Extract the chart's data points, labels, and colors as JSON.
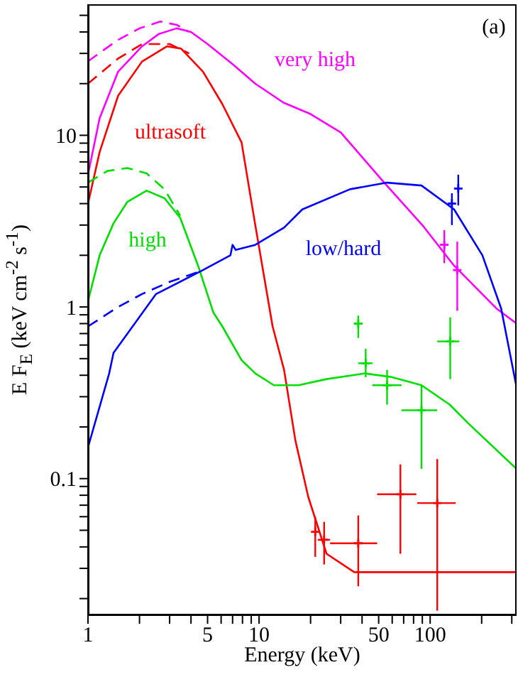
{
  "chart_data": {
    "type": "line",
    "xlabel": "Energy (keV)",
    "ylabel": "E F$_{E}$ (keV cm$^{-2}$ s$^{-1}$)",
    "annotations": [
      "(a)"
    ],
    "log": "xy",
    "grid": false,
    "legend": false,
    "marker": "none",
    "line_style": "solid",
    "xlim": [
      1,
      320
    ],
    "ylim": [
      0.016,
      58
    ],
    "xticks": [
      1,
      {
        "value": 2,
        "label": null
      },
      {
        "value": 3,
        "label": null
      },
      {
        "value": 4,
        "label": null
      },
      5,
      {
        "value": 6,
        "label": null
      },
      {
        "value": 7,
        "label": null
      },
      {
        "value": 8,
        "label": null
      },
      {
        "value": 9,
        "label": null
      },
      10,
      {
        "value": 20,
        "label": null
      },
      {
        "value": 30,
        "label": null
      },
      {
        "value": 40,
        "label": null
      },
      50,
      {
        "value": 60,
        "label": null
      },
      {
        "value": 70,
        "label": null
      },
      {
        "value": 80,
        "label": null
      },
      {
        "value": 90,
        "label": null
      },
      100,
      {
        "value": 200,
        "label": null
      },
      {
        "value": 300,
        "label": null
      }
    ],
    "yticks": [
      {
        "value": 0.02,
        "label": null
      },
      {
        "value": 0.03,
        "label": null
      },
      {
        "value": 0.04,
        "label": null
      },
      {
        "value": 0.05,
        "label": null
      },
      {
        "value": 0.06,
        "label": null
      },
      {
        "value": 0.07,
        "label": null
      },
      {
        "value": 0.08,
        "label": null
      },
      {
        "value": 0.09,
        "label": null
      },
      0.1,
      {
        "value": 0.2,
        "label": null
      },
      {
        "value": 0.3,
        "label": null
      },
      {
        "value": 0.4,
        "label": null
      },
      {
        "value": 0.5,
        "label": null
      },
      {
        "value": 0.6,
        "label": null
      },
      {
        "value": 0.7,
        "label": null
      },
      {
        "value": 0.8,
        "label": null
      },
      {
        "value": 0.9,
        "label": null
      },
      1,
      {
        "value": 2,
        "label": null
      },
      {
        "value": 3,
        "label": null
      },
      {
        "value": 4,
        "label": null
      },
      {
        "value": 5,
        "label": null
      },
      {
        "value": 6,
        "label": null
      },
      {
        "value": 7,
        "label": null
      },
      {
        "value": 8,
        "label": null
      },
      {
        "value": 9,
        "label": null
      },
      10,
      {
        "value": 20,
        "label": null
      },
      {
        "value": 30,
        "label": null
      },
      {
        "value": 40,
        "label": null
      },
      {
        "value": 50,
        "label": null
      }
    ],
    "series": [
      {
        "name": "very high",
        "color": "#ff00ff",
        "x": [
          1,
          1.17,
          1.5,
          2.07,
          2.6,
          3.3,
          4,
          5,
          7,
          9.5,
          13.9,
          20,
          30,
          53,
          90,
          138,
          244,
          320
        ],
        "values": [
          5.9,
          12.6,
          23.5,
          33,
          39,
          42,
          40,
          34,
          26,
          20,
          15.5,
          13.3,
          10.4,
          5.4,
          3.0,
          1.74,
          0.98,
          0.8
        ]
      },
      {
        "color": "#ff00ff",
        "line_style": "dashed",
        "x": [
          1,
          1.5,
          2,
          2.65,
          3.3,
          3.9
        ],
        "values": [
          27,
          36,
          42,
          46,
          44,
          40
        ]
      },
      {
        "name": "ultrasoft",
        "color": "#ff0000",
        "x": [
          1,
          1.17,
          1.5,
          2.07,
          2.9,
          3.5,
          4.7,
          6.1,
          7.9,
          9.5,
          12,
          14,
          16.3,
          19.4,
          24.8,
          36,
          320
        ],
        "values": [
          4.0,
          8,
          17,
          26.9,
          33,
          32,
          23.5,
          15.2,
          9.1,
          3.0,
          0.77,
          0.43,
          0.167,
          0.078,
          0.0365,
          0.0285,
          0.0285
        ]
      },
      {
        "color": "#ff0000",
        "line_style": "dashed",
        "x": [
          1,
          1.5,
          2.07,
          3,
          3.9
        ],
        "values": [
          20,
          28,
          34,
          34,
          30
        ]
      },
      {
        "name": "high",
        "color": "#00e000",
        "x": [
          1,
          1.17,
          1.41,
          1.7,
          2.2,
          2.8,
          3.46,
          4.4,
          5.4,
          6.1,
          7.9,
          9.5,
          12.2,
          17,
          24.8,
          41.5,
          60,
          89,
          130,
          167,
          320
        ],
        "values": [
          1.08,
          2.0,
          3.07,
          4.1,
          4.76,
          4.3,
          3.3,
          1.74,
          0.93,
          0.77,
          0.49,
          0.41,
          0.35,
          0.35,
          0.38,
          0.41,
          0.39,
          0.35,
          0.27,
          0.21,
          0.114
        ]
      },
      {
        "color": "#00e000",
        "line_style": "dashed",
        "x": [
          1,
          1.3,
          1.7,
          2.2,
          2.8,
          3.46
        ],
        "values": [
          5.3,
          6.2,
          6.45,
          6.0,
          4.85,
          3.4
        ]
      },
      {
        "name": "low/hard",
        "color": "#0000ff",
        "x": [
          1,
          1.33,
          1.41,
          2.5,
          4.7,
          6.8,
          7,
          7.3,
          9.5,
          14,
          17.9,
          34,
          56,
          89,
          138,
          202,
          260,
          320
        ],
        "values": [
          0.152,
          0.41,
          0.54,
          1.19,
          1.64,
          2.0,
          2.3,
          2.15,
          2.3,
          2.9,
          3.7,
          4.85,
          5.3,
          5.1,
          3.7,
          2.0,
          0.98,
          0.34
        ]
      },
      {
        "color": "#0000ff",
        "line_style": "dashed",
        "x": [
          1,
          1.5,
          2.07,
          3,
          4.4
        ],
        "values": [
          0.77,
          1.0,
          1.19,
          1.4,
          1.6
        ]
      },
      {
        "type": "scatter",
        "marker": "cross",
        "color": "#ff0000",
        "x": [
          21.3,
          24,
          38,
          67,
          110
        ],
        "values": [
          0.049,
          0.044,
          0.042,
          0.081,
          0.072
        ],
        "errors": [
          [
            0.035,
            0.06
          ],
          [
            0.0316,
            0.056
          ],
          [
            0.0236,
            0.061
          ],
          [
            0.0365,
            0.121
          ],
          [
            0.017,
            0.13
          ]
        ],
        "xerrors": [
          [
            20.5,
            22
          ],
          [
            22,
            26
          ],
          [
            26,
            49
          ],
          [
            49,
            83
          ],
          [
            84,
            141
          ]
        ]
      },
      {
        "type": "scatter",
        "marker": "cross",
        "color": "#00e000",
        "x": [
          38,
          42,
          56,
          89,
          131
        ],
        "values": [
          0.8,
          0.47,
          0.35,
          0.25,
          0.63
        ],
        "errors": [
          [
            0.66,
            0.89
          ],
          [
            0.39,
            0.57
          ],
          [
            0.27,
            0.43
          ],
          [
            0.114,
            0.35
          ],
          [
            0.38,
            0.87
          ]
        ],
        "xerrors": [
          [
            36,
            40
          ],
          [
            38,
            46
          ],
          [
            46,
            68
          ],
          [
            68,
            110
          ],
          [
            110,
            148
          ]
        ]
      },
      {
        "type": "scatter",
        "marker": "cross",
        "color": "#0000ff",
        "x": [
          134,
          146
        ],
        "values": [
          4.0,
          4.9
        ],
        "errors": [
          [
            3.0,
            4.6
          ],
          [
            3.9,
            5.9
          ]
        ],
        "xerrors": [
          [
            128,
            140
          ],
          [
            140,
            152
          ]
        ]
      },
      {
        "type": "scatter",
        "marker": "cross",
        "color": "#ff00ff",
        "x": [
          121,
          144
        ],
        "values": [
          2.3,
          1.64
        ],
        "errors": [
          [
            1.8,
            2.8
          ],
          [
            0.95,
            2.4
          ]
        ],
        "xerrors": [
          [
            114,
            128
          ],
          [
            138,
            150
          ]
        ]
      }
    ]
  }
}
